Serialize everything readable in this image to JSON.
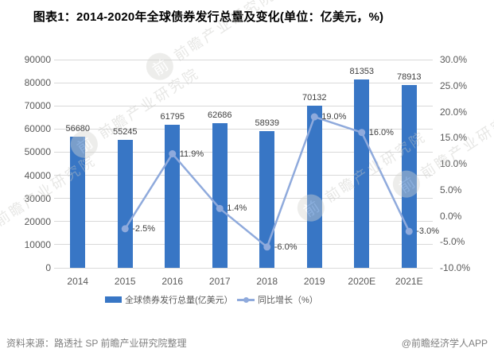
{
  "title": "图表1：2014-2020年全球债券发行总量及变化(单位：亿美元，%)",
  "chart_data": {
    "type": "bar",
    "subtype": "bar-line-combo",
    "categories": [
      "2014",
      "2015",
      "2016",
      "2017",
      "2018",
      "2019",
      "2020E",
      "2021E"
    ],
    "series": [
      {
        "name": "全球债券发行总量(亿美元）",
        "type": "bar",
        "axis": "left",
        "values": [
          56680,
          55245,
          61795,
          62686,
          58939,
          70132,
          81353,
          78913
        ],
        "labels": [
          "56680",
          "55245",
          "61795",
          "62686",
          "58939",
          "70132",
          "81353",
          "78913"
        ]
      },
      {
        "name": "同比增长（%）",
        "type": "line",
        "axis": "right",
        "values": [
          null,
          -2.5,
          11.9,
          1.4,
          -6.0,
          19.0,
          16.0,
          -3.0
        ],
        "labels": [
          "",
          "-2.5%",
          "11.9%",
          "1.4%",
          "-6.0%",
          "19.0%",
          "16.0%",
          "-3.0%"
        ]
      }
    ],
    "left_axis": {
      "min": 0,
      "max": 90000,
      "step": 10000,
      "ticks": [
        "0",
        "10000",
        "20000",
        "30000",
        "40000",
        "50000",
        "60000",
        "70000",
        "80000",
        "90000"
      ]
    },
    "right_axis": {
      "min": -10,
      "max": 30,
      "step": 5,
      "ticks": [
        "30.0%",
        "25.0%",
        "20.0%",
        "15.0%",
        "10.0%",
        "5.0%",
        "0.0%",
        "-5.0%",
        "-10.0%"
      ]
    },
    "grid": true,
    "legend_position": "bottom"
  },
  "legend": {
    "items": [
      {
        "label": "全球债券发行总量(亿美元）",
        "swatch": "bar"
      },
      {
        "label": "同比增长（%）",
        "swatch": "line"
      }
    ]
  },
  "footer": {
    "source": "资料来源：路透社 SP 前瞻产业研究院整理",
    "credit": "@前瞻经济学人APP"
  },
  "watermark": {
    "text": "前瞻产业研究院",
    "logo_char": "前"
  },
  "colors": {
    "bar": "#3876C5",
    "line": "#8FAADC",
    "grid": "#D9D9D9",
    "axis_text": "#595959",
    "data_label": "#404040",
    "footer_text": "#7F7F7F"
  }
}
